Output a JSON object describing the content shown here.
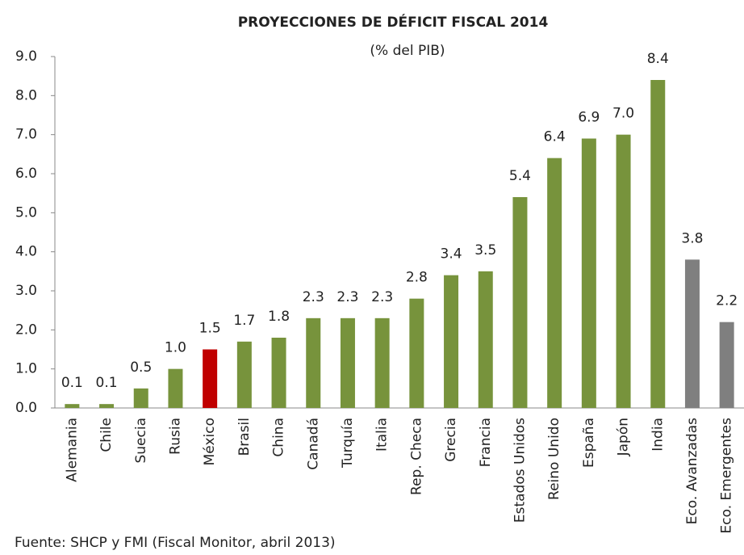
{
  "chart_data": {
    "type": "bar",
    "title": "PROYECCIONES DE DÉFICIT FISCAL 2014",
    "subtitle": "(% del PIB)",
    "source": "Fuente: SHCP y FMI (Fiscal Monitor, abril 2013)",
    "categories": [
      "Alemania",
      "Chile",
      "Suecia",
      "Rusia",
      "México",
      "Brasil",
      "China",
      "Canadá",
      "Turquía",
      "Italia",
      "Rep. Checa",
      "Grecia",
      "Francia",
      "Estados Unidos",
      "Reino Unido",
      "España",
      "Japón",
      "India",
      "Eco. Avanzadas",
      "Eco. Emergentes"
    ],
    "values": [
      0.1,
      0.1,
      0.5,
      1.0,
      1.5,
      1.7,
      1.8,
      2.3,
      2.3,
      2.3,
      2.8,
      3.4,
      3.5,
      5.4,
      6.4,
      6.9,
      7.0,
      8.4,
      3.8,
      2.2
    ],
    "value_labels": [
      "0.1",
      "0.1",
      "0.5",
      "1.0",
      "1.5",
      "1.7",
      "1.8",
      "2.3",
      "2.3",
      "2.3",
      "2.8",
      "3.4",
      "3.5",
      "5.4",
      "6.4",
      "6.9",
      "7.0",
      "8.4",
      "3.8",
      "2.2"
    ],
    "colors": [
      "#77933c",
      "#77933c",
      "#77933c",
      "#77933c",
      "#c00000",
      "#77933c",
      "#77933c",
      "#77933c",
      "#77933c",
      "#77933c",
      "#77933c",
      "#77933c",
      "#77933c",
      "#77933c",
      "#77933c",
      "#77933c",
      "#77933c",
      "#77933c",
      "#7f7f7f",
      "#7f7f7f"
    ],
    "ylim": [
      0,
      9
    ],
    "yticks": [
      {
        "value": 0,
        "label": "0.0"
      },
      {
        "value": 1,
        "label": "1.0"
      },
      {
        "value": 2,
        "label": "2.0"
      },
      {
        "value": 3,
        "label": "3.0"
      },
      {
        "value": 4,
        "label": "4.0"
      },
      {
        "value": 5,
        "label": "5.0"
      },
      {
        "value": 6,
        "label": "6.0"
      },
      {
        "value": 7,
        "label": "7.0"
      },
      {
        "value": 8,
        "label": "8.0"
      },
      {
        "value": 9,
        "label": "9.0"
      }
    ],
    "grid": false
  }
}
